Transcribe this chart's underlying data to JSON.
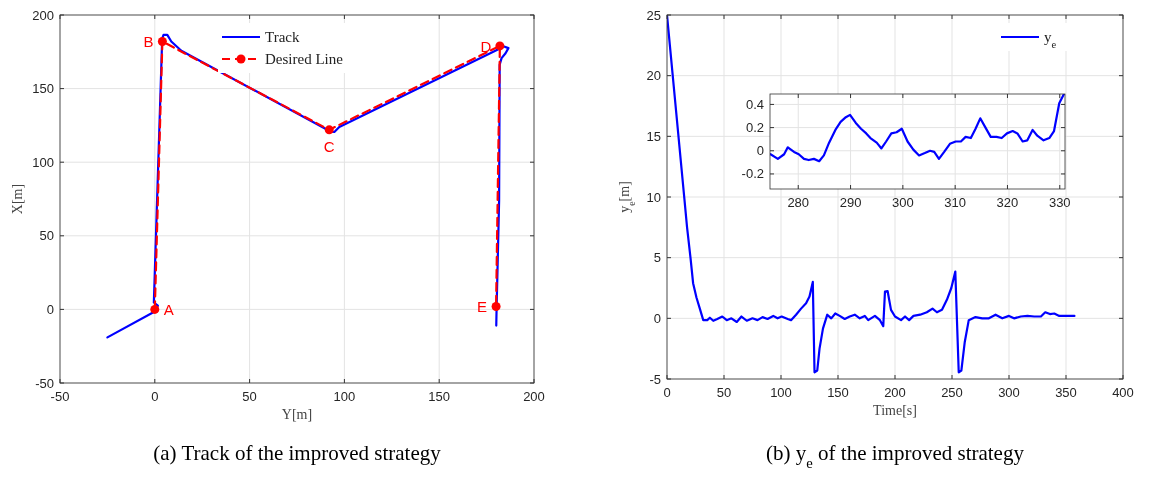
{
  "chart_data": [
    {
      "type": "line",
      "title": "(a)  Track of the improved strategy",
      "xlabel": "Y[m]",
      "ylabel": "X[m]",
      "xlim": [
        -50,
        200
      ],
      "ylim": [
        -50,
        200
      ],
      "xticks": [
        -50,
        0,
        50,
        100,
        150,
        200
      ],
      "yticks": [
        -50,
        0,
        50,
        100,
        150,
        200
      ],
      "grid": true,
      "legend": "top",
      "series": [
        {
          "name": "Track",
          "color": "#0000ff",
          "line_style": "solid",
          "marker": "none",
          "x": [
            -25,
            0,
            1.6,
            -0.5,
            1.2,
            3.9,
            4.6,
            6.6,
            8.7,
            14,
            92.9,
            94.7,
            97.3,
            184.2,
            186.5,
            185,
            182.9,
            181.9,
            181.6,
            180.7,
            180.3,
            180.1
          ],
          "values": [
            -19,
            -1.4,
            2.5,
            4.7,
            74,
            184,
            186.5,
            186.5,
            182,
            175.7,
            120.7,
            120.5,
            123.9,
            178.6,
            177.5,
            174,
            170.7,
            166.2,
            74,
            24,
            2.5,
            -11
          ]
        },
        {
          "name": "Desired Line",
          "color": "#ff0000",
          "line_style": "dashed",
          "marker": "circle",
          "x": [
            0,
            4,
            92,
            182,
            180
          ],
          "values": [
            0,
            182,
            122,
            179,
            2
          ]
        }
      ],
      "annotations": [
        {
          "text": "A",
          "x": 0,
          "y": 0
        },
        {
          "text": "B",
          "x": 4,
          "y": 182
        },
        {
          "text": "C",
          "x": 92,
          "y": 122
        },
        {
          "text": "D",
          "x": 182,
          "y": 179
        },
        {
          "text": "E",
          "x": 180,
          "y": 2
        }
      ]
    },
    {
      "type": "line",
      "title": "(b)  y$_{e}$ of the improved strategy",
      "xlabel": "Time[s]",
      "ylabel": "y$_{e}$[m]",
      "xlim": [
        0,
        400
      ],
      "ylim": [
        -5,
        25
      ],
      "xticks": [
        0,
        50,
        100,
        150,
        200,
        250,
        300,
        350,
        400
      ],
      "yticks": [
        -5,
        0,
        5,
        10,
        15,
        20,
        25
      ],
      "grid": true,
      "legend": "top right",
      "series": [
        {
          "name": "y$_{e}$",
          "color": "#0000ff",
          "x": [
            0,
            15.3,
            17.6,
            20.6,
            22.9,
            25.9,
            28.8,
            31.8,
            35.3,
            37.6,
            40.6,
            44.1,
            48.5,
            52.4,
            56.5,
            61.2,
            65.3,
            70,
            75,
            79.4,
            83.8,
            88.2,
            93.2,
            97,
            100.6,
            105.9,
            108.8,
            113.2,
            117.6,
            122,
            125,
            127.9,
            129.4,
            131.8,
            133.8,
            136.8,
            140.6,
            144.1,
            147.6,
            151.5,
            155.9,
            160.3,
            164.7,
            169.1,
            173.5,
            176.5,
            182.4,
            186.8,
            189.7,
            191.2,
            193.5,
            196.5,
            200,
            205.3,
            208.8,
            212.4,
            216.2,
            222.1,
            227.9,
            232.9,
            236.8,
            241.2,
            245.6,
            249.4,
            252.9,
            255.9,
            258.2,
            261.2,
            264.7,
            270.6,
            276.5,
            282.4,
            288.2,
            294.1,
            300,
            304.4,
            310.3,
            316.2,
            322.1,
            328,
            331.8,
            335.9,
            339.7,
            344.1,
            357.4
          ],
          "values": [
            25,
            9.8,
            7.5,
            5.0,
            2.9,
            1.7,
            0.8,
            -0.15,
            -0.15,
            0.05,
            -0.2,
            -0.05,
            0.15,
            -0.15,
            0,
            -0.3,
            0.15,
            -0.2,
            0,
            -0.15,
            0.1,
            -0.05,
            0.2,
            0,
            0.15,
            -0.05,
            -0.15,
            0.3,
            0.8,
            1.25,
            1.8,
            3.0,
            -4.45,
            -4.3,
            -2.5,
            -0.85,
            0.3,
            0,
            0.4,
            0.2,
            -0.05,
            0.15,
            0.3,
            0,
            0.2,
            -0.15,
            0.2,
            -0.15,
            -0.65,
            2.2,
            2.25,
            0.7,
            0.15,
            -0.15,
            0.15,
            -0.15,
            0.2,
            0.3,
            0.5,
            0.8,
            0.5,
            0.7,
            1.55,
            2.5,
            3.85,
            -4.45,
            -4.3,
            -1.95,
            -0.15,
            0.1,
            0,
            0,
            0.3,
            0,
            0.2,
            0,
            0.15,
            0.2,
            0.15,
            0.15,
            0.5,
            0.35,
            0.4,
            0.2,
            0.2
          ]
        }
      ]
    },
    {
      "type": "line",
      "xlim": [
        274.6,
        331
      ],
      "ylim": [
        -0.33,
        0.49
      ],
      "xticks": [
        280,
        290,
        300,
        310,
        320,
        330
      ],
      "yticks": [
        -0.2,
        0,
        0.2,
        0.4
      ],
      "grid": true,
      "series": [
        {
          "color": "#0000ff",
          "x": [
            274.7,
            276.1,
            277.3,
            278.0,
            279.2,
            280.1,
            281.1,
            282.0,
            283.0,
            284.0,
            284.9,
            285.9,
            287.1,
            288.1,
            289.1,
            289.9,
            291.0,
            292.0,
            293.0,
            293.8,
            295.0,
            295.9,
            296.8,
            297.8,
            298.8,
            299.8,
            300.9,
            302.0,
            303.1,
            304.2,
            305.2,
            306.0,
            306.9,
            307.9,
            309.0,
            310.1,
            311.1,
            312.0,
            313.0,
            313.9,
            314.8,
            315.8,
            316.8,
            317.9,
            318.9,
            319.9,
            321.0,
            321.9,
            322.9,
            323.8,
            324.8,
            325.7,
            326.9,
            328.0,
            328.9,
            329.9,
            330.8
          ],
          "values": [
            -0.03,
            -0.07,
            -0.03,
            0.03,
            -0.01,
            -0.03,
            -0.07,
            -0.08,
            -0.07,
            -0.09,
            -0.04,
            0.07,
            0.18,
            0.25,
            0.29,
            0.31,
            0.24,
            0.19,
            0.15,
            0.11,
            0.07,
            0.02,
            0.08,
            0.15,
            0.16,
            0.19,
            0.08,
            0.01,
            -0.04,
            -0.02,
            0,
            -0.01,
            -0.07,
            -0.01,
            0.06,
            0.08,
            0.08,
            0.12,
            0.11,
            0.19,
            0.28,
            0.2,
            0.12,
            0.12,
            0.11,
            0.15,
            0.17,
            0.15,
            0.08,
            0.09,
            0.18,
            0.13,
            0.09,
            0.11,
            0.17,
            0.41,
            0.49
          ]
        }
      ]
    }
  ]
}
